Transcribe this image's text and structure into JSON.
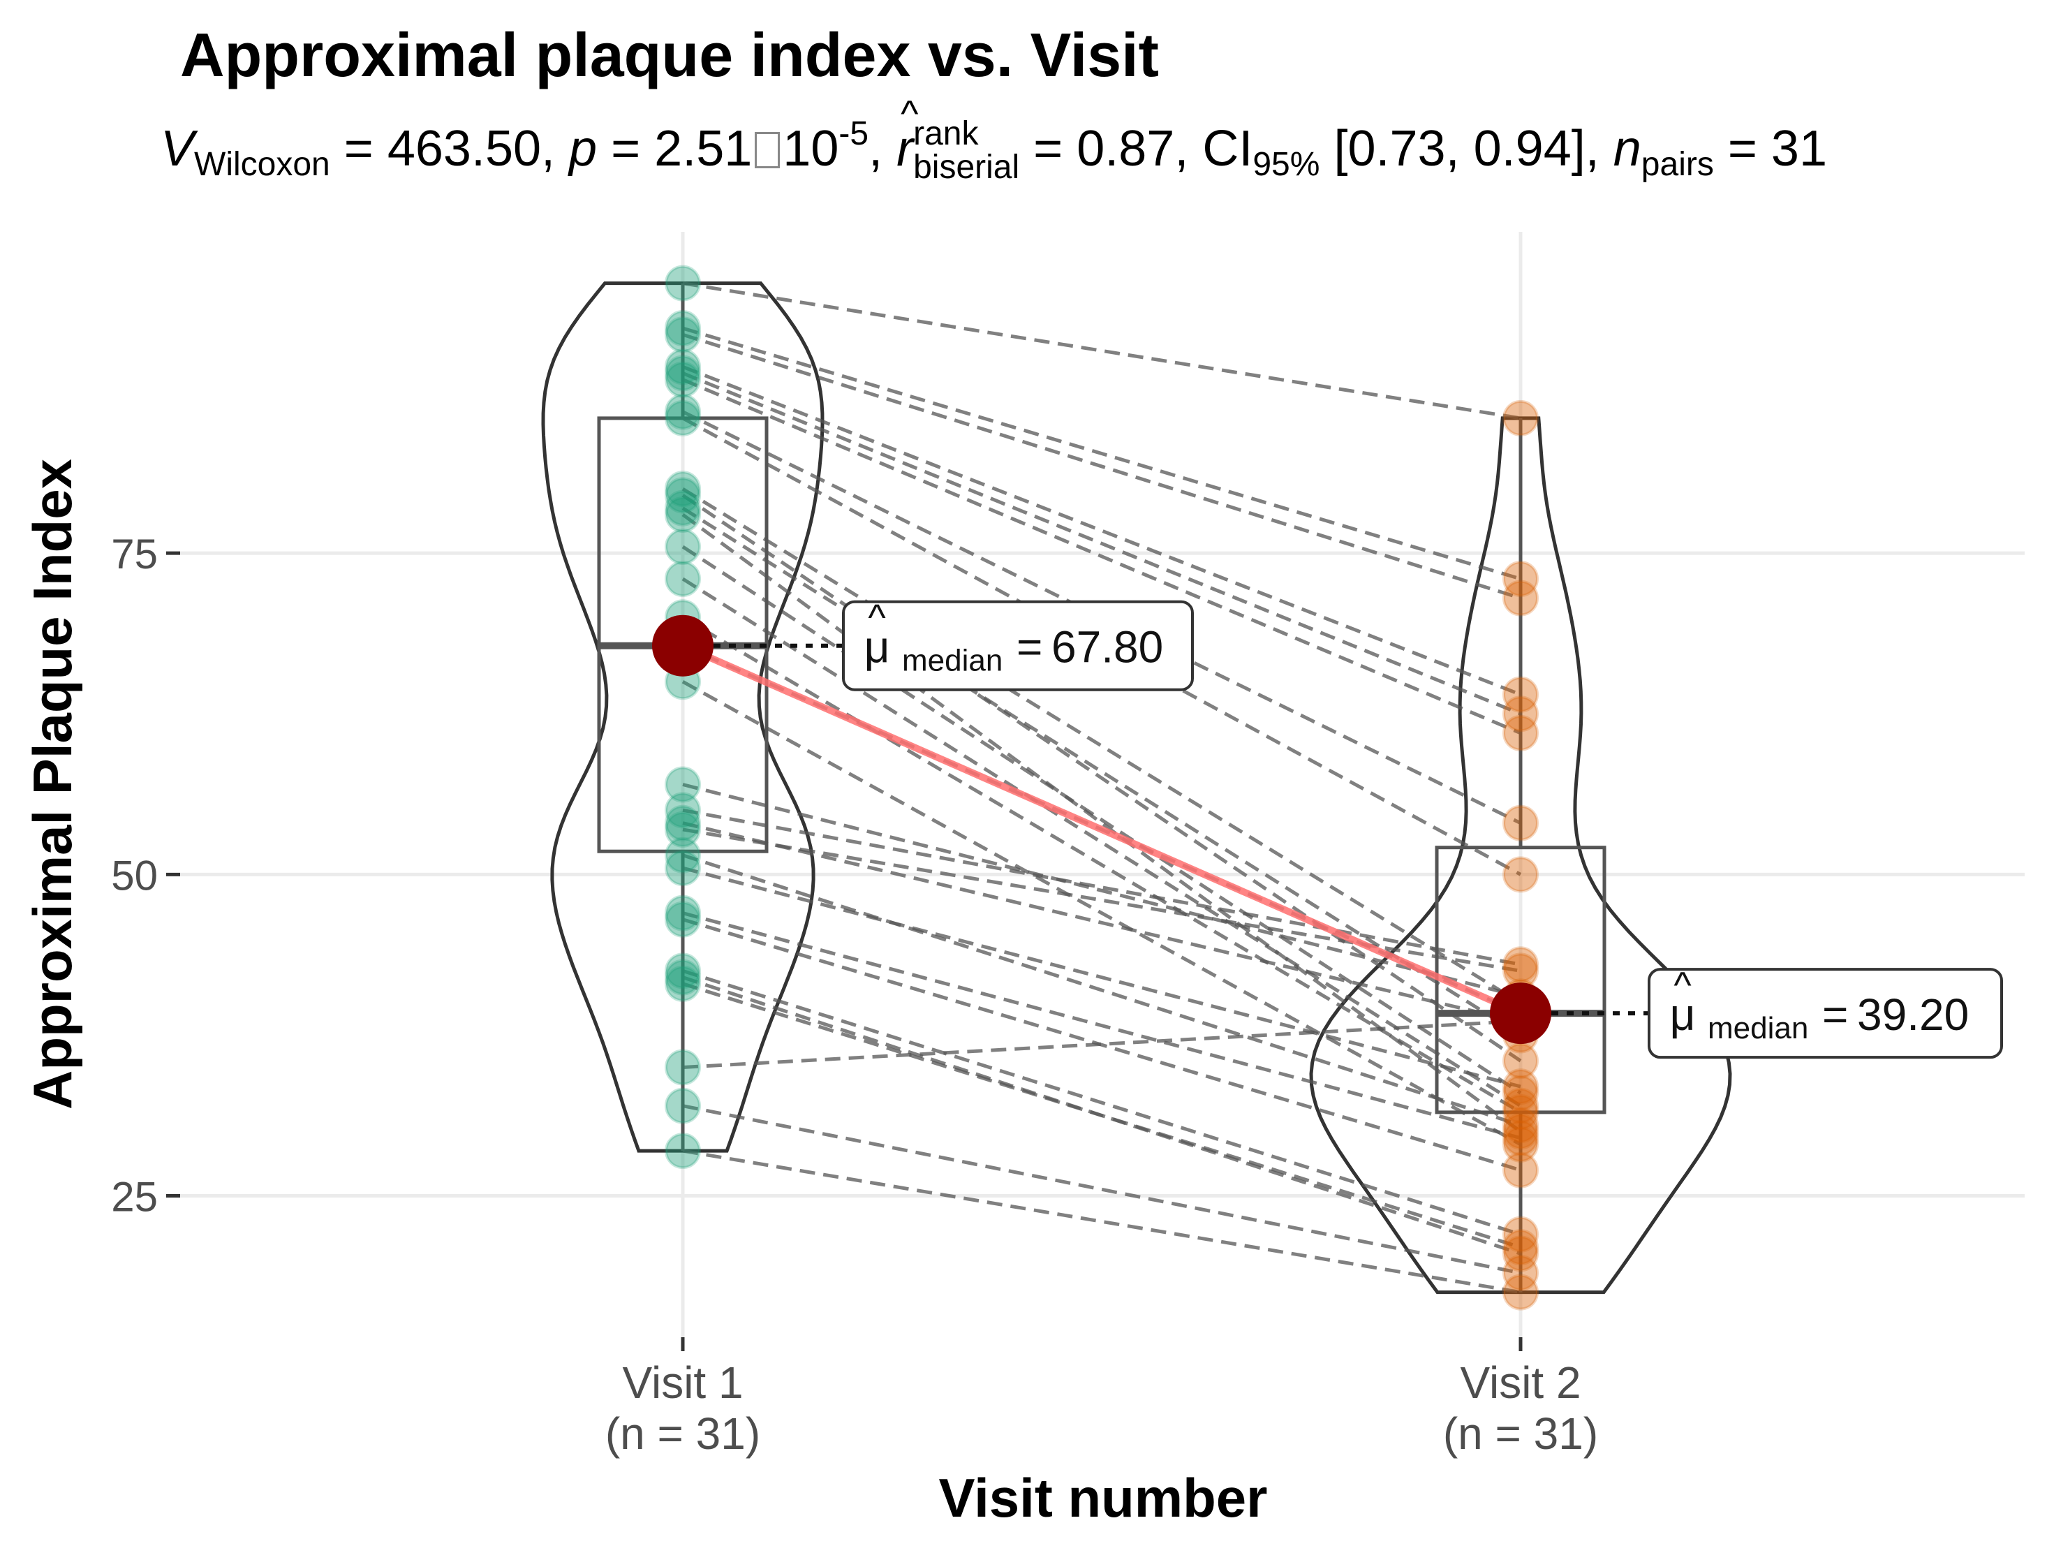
{
  "chart_data": {
    "type": "violin-box-paired",
    "title": "Approximal plaque index vs. Visit",
    "subtitle": {
      "v_label": "V",
      "v_sub": "Wilcoxon",
      "v_value": "463.50",
      "p_label": "p",
      "p_mantissa": "2.51",
      "p_exponent_base": "10",
      "p_exponent": "-5",
      "r_label": "r",
      "r_sup": "rank",
      "r_sub": "biserial",
      "r_value": "0.87",
      "ci_label": "CI",
      "ci_sub": "95%",
      "ci_range": "[0.73, 0.94]",
      "n_label": "n",
      "n_sub": "pairs",
      "n_value": "31"
    },
    "xlabel": "Visit number",
    "ylabel": "Approximal Plaque Index",
    "ylim": [
      14,
      100
    ],
    "yticks": [
      25,
      50,
      75
    ],
    "grid": true,
    "categories": [
      {
        "name": "Visit 1",
        "n_label": "(n = 31)",
        "color": "#1b9e77"
      },
      {
        "name": "Visit 2",
        "n_label": "(n = 31)",
        "color": "#d95f02"
      }
    ],
    "boxes": [
      {
        "q1": 51.8,
        "median": 67.8,
        "q3": 85.5,
        "whisker_low": 28.5,
        "whisker_high": 96
      },
      {
        "q1": 31.5,
        "median": 39.2,
        "q3": 52.1,
        "whisker_low": 17.5,
        "whisker_high": 85.5
      }
    ],
    "median_labels": [
      {
        "symbol": "μ",
        "sub": "median",
        "value": "67.80"
      },
      {
        "symbol": "μ",
        "sub": "median",
        "value": "39.20"
      }
    ],
    "pairs": [
      [
        96,
        85.5
      ],
      [
        92.5,
        73
      ],
      [
        92,
        71.5
      ],
      [
        89.5,
        64
      ],
      [
        89,
        62.5
      ],
      [
        88.5,
        61
      ],
      [
        86,
        54
      ],
      [
        85.5,
        50
      ],
      [
        80,
        40
      ],
      [
        79.5,
        35.5
      ],
      [
        78.5,
        37.5
      ],
      [
        78,
        30
      ],
      [
        75.5,
        33
      ],
      [
        73,
        32
      ],
      [
        70,
        31.5
      ],
      [
        67.8,
        39.2
      ],
      [
        65,
        29
      ],
      [
        57,
        40.5
      ],
      [
        55,
        43
      ],
      [
        54,
        38.5
      ],
      [
        53.5,
        42.5
      ],
      [
        51.5,
        30.5
      ],
      [
        50.5,
        33.5
      ],
      [
        47,
        29.5
      ],
      [
        46.5,
        27
      ],
      [
        42.5,
        22
      ],
      [
        42,
        20.5
      ],
      [
        41.5,
        21
      ],
      [
        35,
        38.6
      ],
      [
        32,
        19
      ],
      [
        28.5,
        17.5
      ]
    ],
    "median_line": [
      67.8,
      39.2
    ]
  },
  "colors": {
    "median_point": "#8b0000",
    "median_line": "#ff6e6e",
    "grid": "#ebebeb",
    "pair_line": "#555555"
  }
}
